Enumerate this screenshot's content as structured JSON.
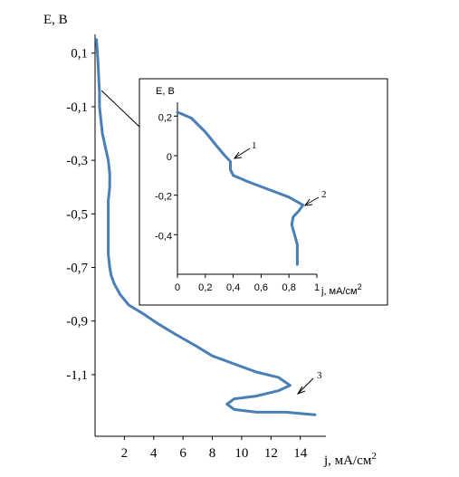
{
  "chart_data": [
    {
      "type": "line",
      "xlabel": "j, мА/см",
      "xlabel_sup": "2",
      "ylabel": "E, В",
      "x_ticks": [
        "2",
        "4",
        "6",
        "8",
        "10",
        "12",
        "14"
      ],
      "y_ticks": [
        "0,1",
        "-0,1",
        "-0,3",
        "-0,5",
        "-0,7",
        "-0,9",
        "-1,1"
      ],
      "xlim": [
        0,
        15.5
      ],
      "ylim": [
        -1.33,
        0.17
      ],
      "grid": false,
      "series": [
        {
          "color": "#4a7fb5",
          "x": [
            0.1,
            0.2,
            0.3,
            0.3,
            0.4,
            0.5,
            0.7,
            0.9,
            1.0,
            1.0,
            0.9,
            0.9,
            0.9,
            1.0,
            1.1,
            1.3,
            1.7,
            2.3,
            3.2,
            4.3,
            5.5,
            6.8,
            8.0,
            9.5,
            11.0,
            12.5,
            13.3,
            12.5,
            11.0,
            9.5,
            9.0,
            9.5,
            11.0,
            13.0,
            15.0
          ],
          "y": [
            0.15,
            0.07,
            -0.05,
            -0.1,
            -0.15,
            -0.2,
            -0.25,
            -0.3,
            -0.35,
            -0.4,
            -0.45,
            -0.55,
            -0.65,
            -0.7,
            -0.73,
            -0.76,
            -0.8,
            -0.84,
            -0.87,
            -0.91,
            -0.95,
            -0.99,
            -1.03,
            -1.06,
            -1.09,
            -1.11,
            -1.14,
            -1.16,
            -1.18,
            -1.19,
            -1.21,
            -1.23,
            -1.24,
            -1.24,
            -1.25
          ]
        }
      ],
      "annotations": [
        {
          "text": "3",
          "x": 13.3,
          "y": -1.14
        }
      ]
    },
    {
      "type": "line",
      "inset": true,
      "xlabel": "j, мА/см",
      "xlabel_sup": "2",
      "ylabel": "E, В",
      "x_ticks": [
        "0",
        "0,2",
        "0,4",
        "0,6",
        "0,8",
        "1"
      ],
      "y_ticks": [
        "0,2",
        "0",
        "-0,2",
        "-0,4"
      ],
      "xlim": [
        0,
        1.0
      ],
      "ylim": [
        -0.6,
        0.27
      ],
      "grid": false,
      "series": [
        {
          "color": "#4a7fb5",
          "x": [
            0.0,
            0.1,
            0.2,
            0.28,
            0.34,
            0.38,
            0.38,
            0.4,
            0.5,
            0.65,
            0.8,
            0.9,
            0.87,
            0.83,
            0.82,
            0.84,
            0.86,
            0.86
          ],
          "y": [
            0.22,
            0.19,
            0.12,
            0.05,
            0.0,
            -0.03,
            -0.07,
            -0.1,
            -0.13,
            -0.17,
            -0.21,
            -0.25,
            -0.28,
            -0.31,
            -0.35,
            -0.4,
            -0.45,
            -0.55
          ]
        }
      ],
      "annotations": [
        {
          "text": "1",
          "x": 0.39,
          "y": 0.0
        },
        {
          "text": "2",
          "x": 0.9,
          "y": -0.25
        }
      ]
    }
  ]
}
